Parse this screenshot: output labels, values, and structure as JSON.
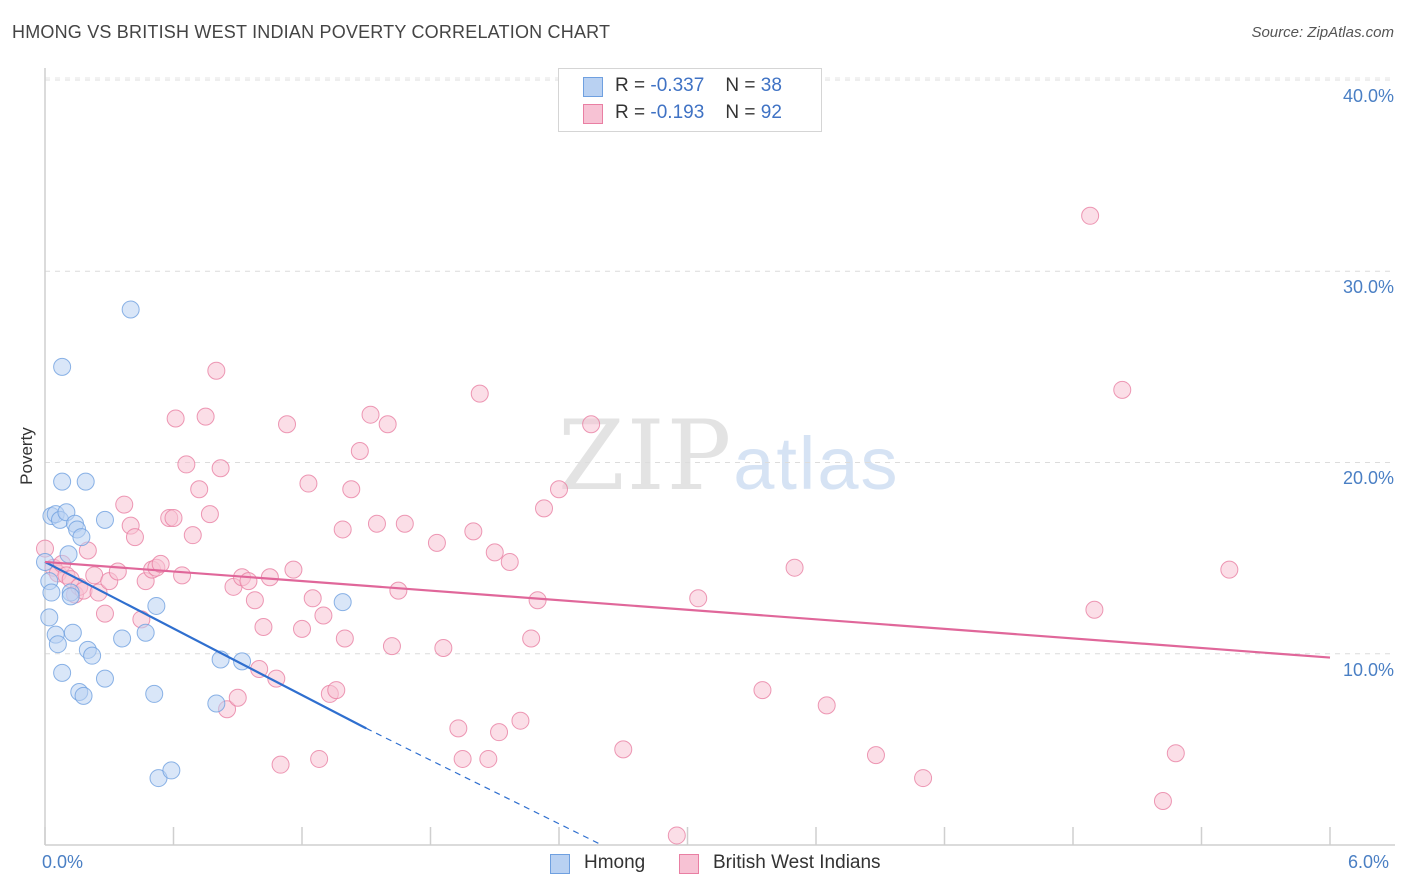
{
  "title": "HMONG VS BRITISH WEST INDIAN POVERTY CORRELATION CHART",
  "source": "Source: ZipAtlas.com",
  "watermark": {
    "main": "ZIP",
    "sub": "atlas"
  },
  "colors": {
    "hmong": "#6fa0e0",
    "hmong_fill": "#b9d1f2",
    "bwi": "#e97fa3",
    "bwi_fill": "#f7c2d4",
    "hmong_line": "#2f6fcf",
    "bwi_line": "#e0679a",
    "axis_text": "#4a7fc4"
  },
  "legend": {
    "r_label": "R =",
    "n_label": "N =",
    "hmong": {
      "r": "-0.337",
      "n": "38"
    },
    "bwi": {
      "r": "-0.193",
      "n": "92"
    }
  },
  "chart_data": {
    "type": "scatter",
    "title": "HMONG VS BRITISH WEST INDIAN POVERTY CORRELATION CHART",
    "xlabel": "",
    "ylabel": "Poverty",
    "xlim": [
      0,
      6
    ],
    "ylim": [
      0,
      40
    ],
    "x_tick_labels": [
      "0.0%",
      "6.0%"
    ],
    "y_tick_labels": [
      "10.0%",
      "20.0%",
      "30.0%",
      "40.0%"
    ],
    "y_ticks": [
      10,
      20,
      30,
      40
    ],
    "series": [
      {
        "name": "Hmong",
        "points": [
          [
            0.0,
            14.8
          ],
          [
            0.02,
            13.8
          ],
          [
            0.03,
            13.2
          ],
          [
            0.02,
            11.9
          ],
          [
            0.05,
            11.0
          ],
          [
            0.06,
            10.5
          ],
          [
            0.08,
            9.0
          ],
          [
            0.03,
            17.2
          ],
          [
            0.05,
            17.3
          ],
          [
            0.07,
            17.0
          ],
          [
            0.08,
            19.0
          ],
          [
            0.1,
            17.4
          ],
          [
            0.11,
            15.2
          ],
          [
            0.12,
            13.2
          ],
          [
            0.12,
            13.0
          ],
          [
            0.13,
            11.1
          ],
          [
            0.14,
            16.8
          ],
          [
            0.15,
            16.5
          ],
          [
            0.16,
            8.0
          ],
          [
            0.17,
            16.1
          ],
          [
            0.18,
            7.8
          ],
          [
            0.19,
            19.0
          ],
          [
            0.2,
            10.2
          ],
          [
            0.22,
            9.9
          ],
          [
            0.28,
            17.0
          ],
          [
            0.28,
            8.7
          ],
          [
            0.36,
            10.8
          ],
          [
            0.4,
            28.0
          ],
          [
            0.47,
            11.1
          ],
          [
            0.52,
            12.5
          ],
          [
            0.51,
            7.9
          ],
          [
            0.53,
            3.5
          ],
          [
            0.59,
            3.9
          ],
          [
            0.8,
            7.4
          ],
          [
            0.82,
            9.7
          ],
          [
            0.92,
            9.6
          ],
          [
            0.08,
            25.0
          ],
          [
            1.39,
            12.7
          ]
        ]
      },
      {
        "name": "British West Indians",
        "points": [
          [
            0.0,
            15.5
          ],
          [
            0.04,
            14.5
          ],
          [
            0.06,
            14.2
          ],
          [
            0.08,
            14.7
          ],
          [
            0.1,
            14.1
          ],
          [
            0.12,
            13.9
          ],
          [
            0.14,
            13.1
          ],
          [
            0.16,
            13.5
          ],
          [
            0.18,
            13.3
          ],
          [
            0.2,
            15.4
          ],
          [
            0.23,
            14.1
          ],
          [
            0.25,
            13.2
          ],
          [
            0.28,
            12.1
          ],
          [
            0.3,
            13.8
          ],
          [
            0.34,
            14.3
          ],
          [
            0.37,
            17.8
          ],
          [
            0.4,
            16.7
          ],
          [
            0.42,
            16.1
          ],
          [
            0.45,
            11.8
          ],
          [
            0.47,
            13.8
          ],
          [
            0.5,
            14.4
          ],
          [
            0.52,
            14.5
          ],
          [
            0.54,
            14.7
          ],
          [
            0.58,
            17.1
          ],
          [
            0.6,
            17.1
          ],
          [
            0.61,
            22.3
          ],
          [
            0.64,
            14.1
          ],
          [
            0.66,
            19.9
          ],
          [
            0.69,
            16.2
          ],
          [
            0.72,
            18.6
          ],
          [
            0.75,
            22.4
          ],
          [
            0.77,
            17.3
          ],
          [
            0.8,
            24.8
          ],
          [
            0.82,
            19.7
          ],
          [
            0.85,
            7.1
          ],
          [
            0.88,
            13.5
          ],
          [
            0.9,
            7.7
          ],
          [
            0.92,
            14.0
          ],
          [
            0.95,
            13.8
          ],
          [
            0.98,
            12.8
          ],
          [
            1.0,
            9.2
          ],
          [
            1.02,
            11.4
          ],
          [
            1.05,
            14.0
          ],
          [
            1.08,
            8.7
          ],
          [
            1.1,
            4.2
          ],
          [
            1.13,
            22.0
          ],
          [
            1.16,
            14.4
          ],
          [
            1.2,
            11.3
          ],
          [
            1.23,
            18.9
          ],
          [
            1.25,
            12.9
          ],
          [
            1.28,
            4.5
          ],
          [
            1.3,
            12.0
          ],
          [
            1.33,
            7.9
          ],
          [
            1.36,
            8.1
          ],
          [
            1.39,
            16.5
          ],
          [
            1.4,
            10.8
          ],
          [
            1.43,
            18.6
          ],
          [
            1.47,
            20.6
          ],
          [
            1.52,
            22.5
          ],
          [
            1.55,
            16.8
          ],
          [
            1.6,
            22.0
          ],
          [
            1.62,
            10.4
          ],
          [
            1.65,
            13.3
          ],
          [
            1.68,
            16.8
          ],
          [
            1.83,
            15.8
          ],
          [
            1.86,
            10.3
          ],
          [
            1.93,
            6.1
          ],
          [
            1.95,
            4.5
          ],
          [
            2.0,
            16.4
          ],
          [
            2.03,
            23.6
          ],
          [
            2.07,
            4.5
          ],
          [
            2.1,
            15.3
          ],
          [
            2.12,
            5.9
          ],
          [
            2.17,
            14.8
          ],
          [
            2.22,
            6.5
          ],
          [
            2.27,
            10.8
          ],
          [
            2.3,
            12.8
          ],
          [
            2.33,
            17.6
          ],
          [
            2.4,
            18.6
          ],
          [
            2.55,
            22.0
          ],
          [
            2.7,
            5.0
          ],
          [
            2.95,
            0.5
          ],
          [
            3.05,
            12.9
          ],
          [
            3.35,
            8.1
          ],
          [
            3.5,
            14.5
          ],
          [
            3.65,
            7.3
          ],
          [
            3.88,
            4.7
          ],
          [
            4.1,
            3.5
          ],
          [
            4.88,
            32.9
          ],
          [
            4.9,
            12.3
          ],
          [
            5.03,
            23.8
          ],
          [
            5.22,
            2.3
          ],
          [
            5.28,
            4.8
          ],
          [
            5.53,
            14.4
          ]
        ]
      }
    ],
    "trendlines": [
      {
        "series": "Hmong",
        "x": [
          0.0,
          1.5
        ],
        "y": [
          14.8,
          6.1
        ],
        "dashed_extension": {
          "x": [
            1.5,
            2.6
          ],
          "y": [
            6.1,
            0.0
          ]
        }
      },
      {
        "series": "British West Indians",
        "x": [
          0.0,
          6.0
        ],
        "y": [
          14.8,
          9.8
        ]
      }
    ],
    "legend_position": "top-center, bottom"
  },
  "bottom_legend": {
    "hmong": "Hmong",
    "bwi": "British West Indians"
  }
}
